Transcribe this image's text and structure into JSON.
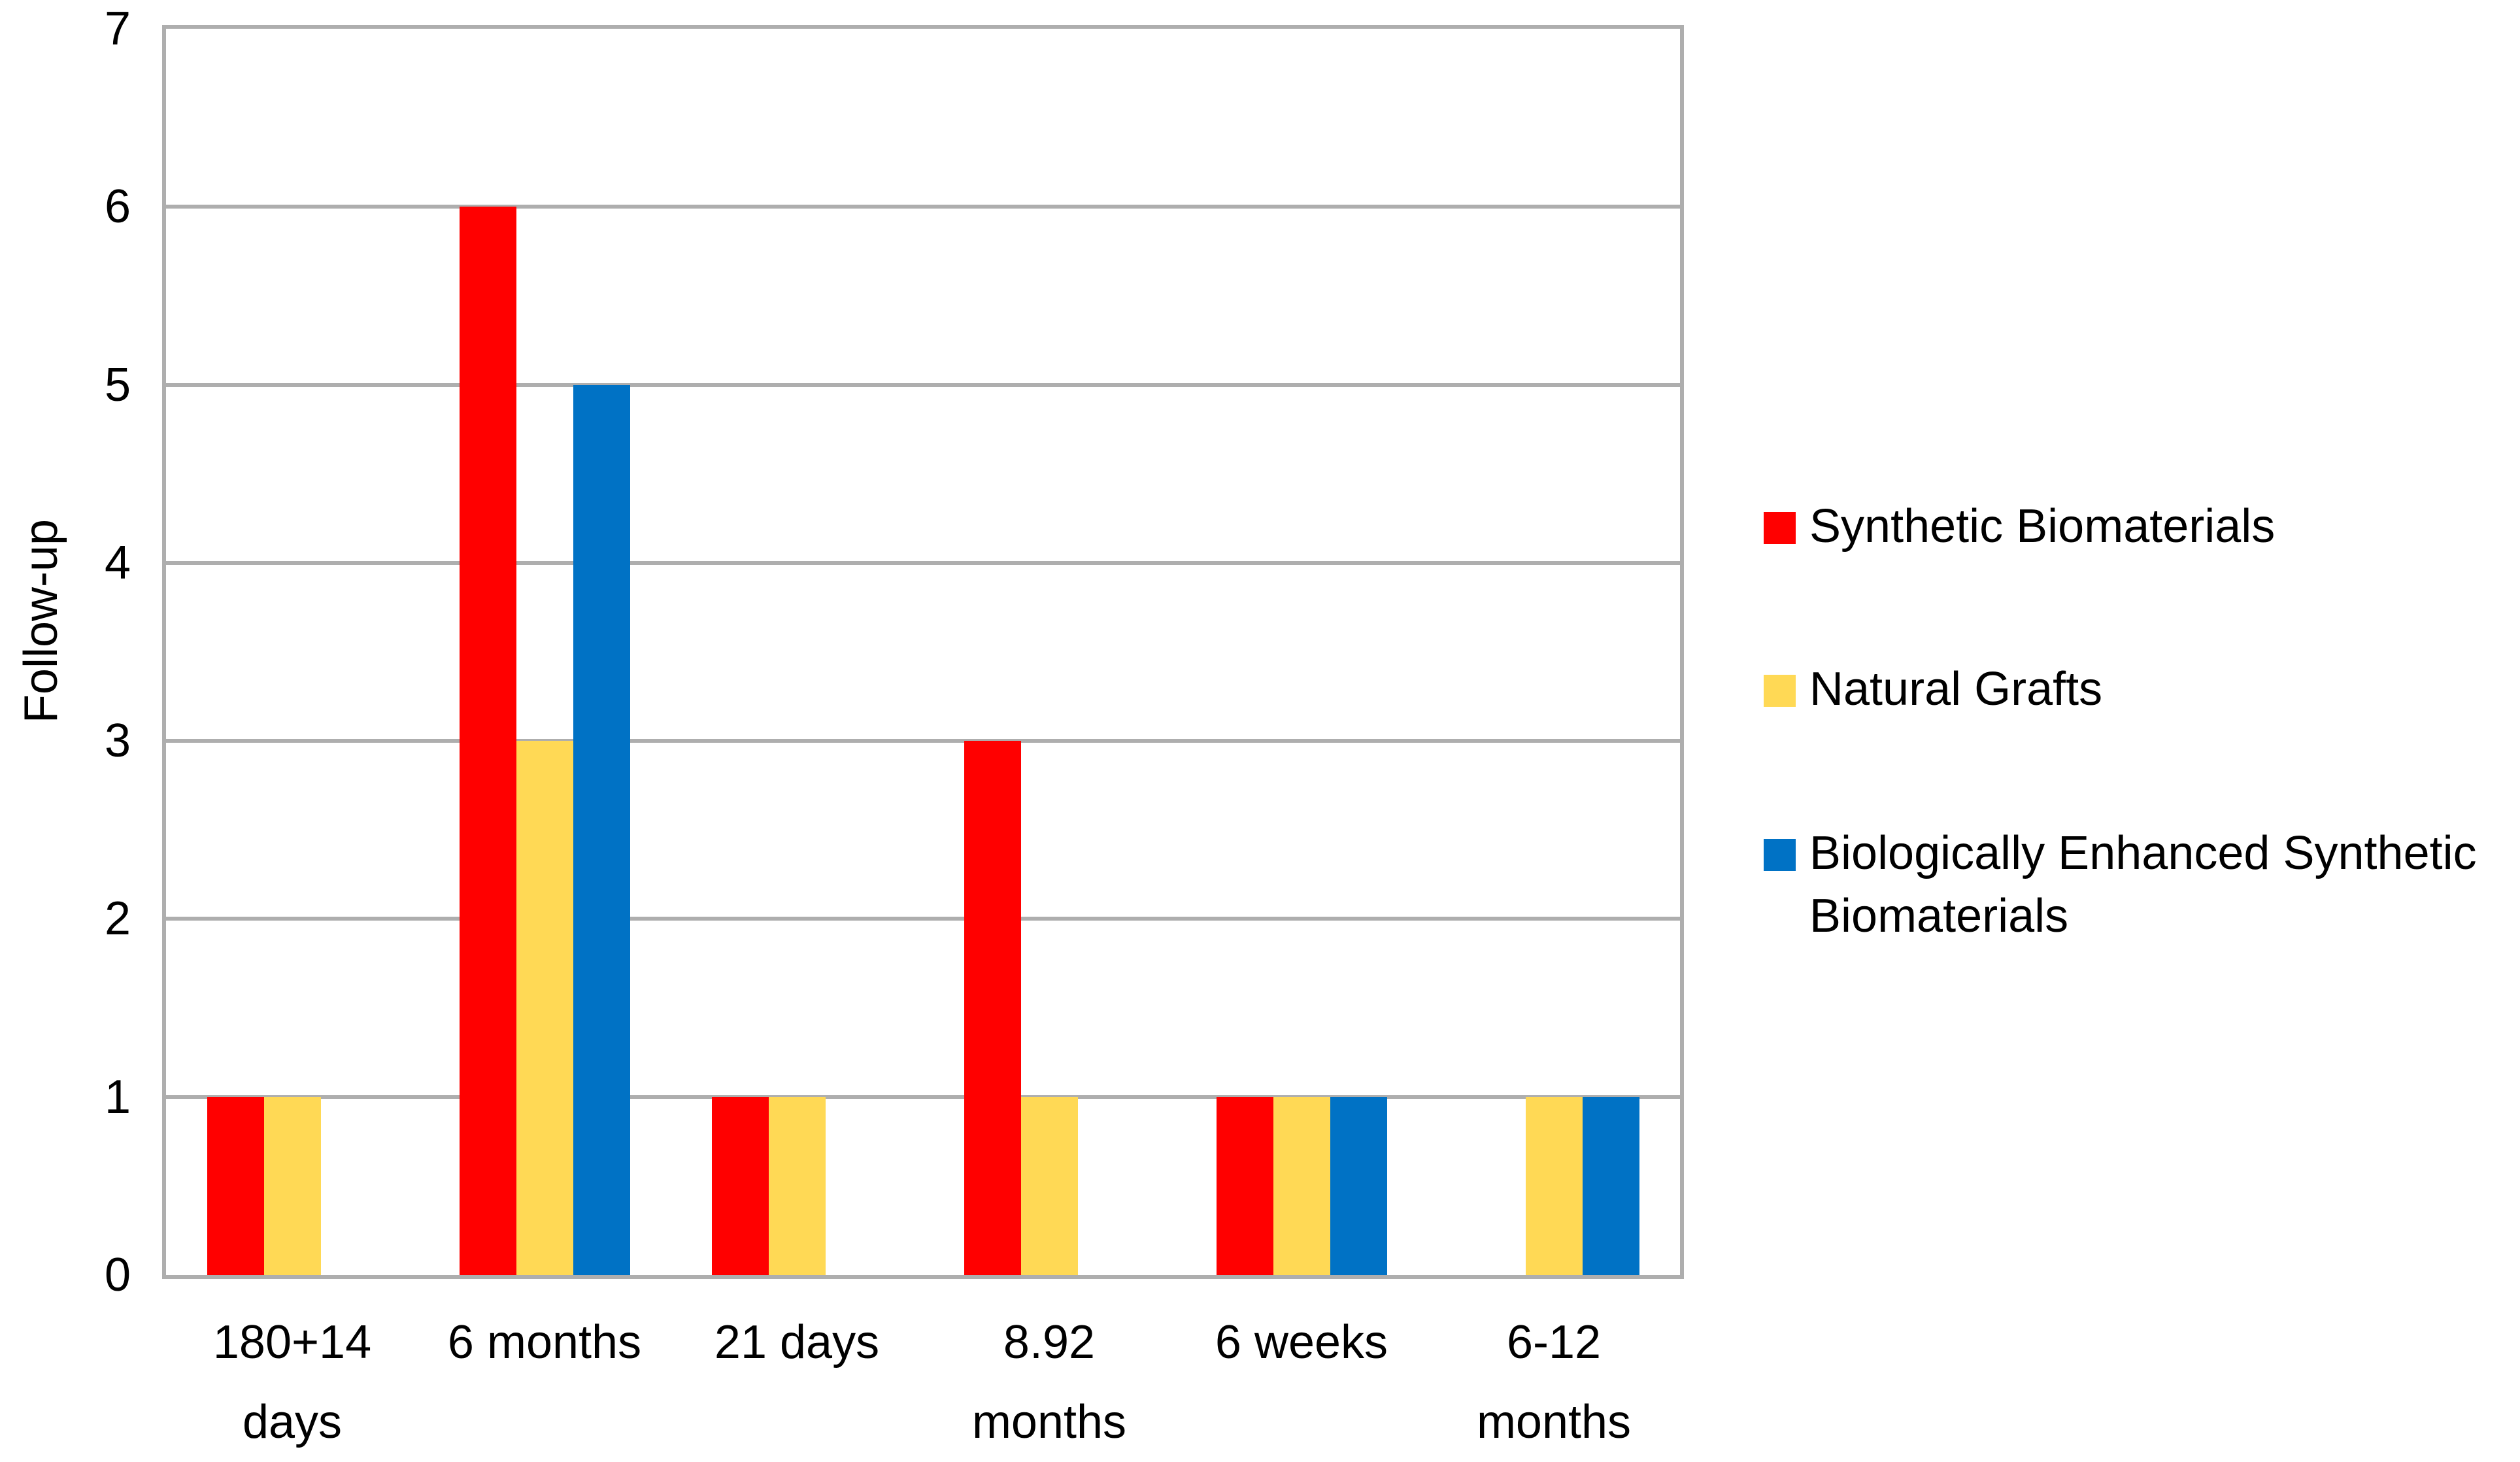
{
  "chart_data": {
    "type": "bar",
    "title": "",
    "xlabel": "",
    "ylabel": "Follow-up",
    "ylim": [
      0,
      7
    ],
    "ytick_step": 1,
    "yticks": [
      0,
      1,
      2,
      3,
      4,
      5,
      6,
      7
    ],
    "grid": "horizontal",
    "legend_position": "right",
    "categories": [
      "180+14 days",
      "6 months",
      "21 days",
      "8.92 months",
      "6 weeks",
      "6-12 months"
    ],
    "categories_lines": [
      [
        "180+14",
        "days"
      ],
      [
        "6 months"
      ],
      [
        "21 days"
      ],
      [
        "8.92",
        "months"
      ],
      [
        "6 weeks"
      ],
      [
        "6-12",
        "months"
      ]
    ],
    "series": [
      {
        "name": "Synthetic Biomaterials",
        "color": "#FF0000",
        "values": [
          1,
          6,
          1,
          3,
          1,
          null
        ]
      },
      {
        "name": "Natural Grafts",
        "color": "#FFD955",
        "values": [
          1,
          3,
          1,
          1,
          1,
          1
        ]
      },
      {
        "name": "Biologically Enhanced Synthetic Biomaterials",
        "color": "#0072C5",
        "values": [
          null,
          5,
          null,
          null,
          1,
          1
        ]
      }
    ],
    "colors": {
      "gridline": "#AEAEAE",
      "axis_border": "#AEAEAE",
      "text": "#000000",
      "background": "#FFFFFF"
    }
  },
  "legend": {
    "items": [
      {
        "label": "Synthetic Biomaterials",
        "lines": [
          "Synthetic Biomaterials"
        ]
      },
      {
        "label": "Natural Grafts",
        "lines": [
          "Natural Grafts"
        ]
      },
      {
        "label": "Biologically Enhanced Synthetic Biomaterials",
        "lines": [
          "Biologically Enhanced Synthetic",
          "Biomaterials"
        ]
      }
    ]
  },
  "y_axis": {
    "title": "Follow-up"
  }
}
